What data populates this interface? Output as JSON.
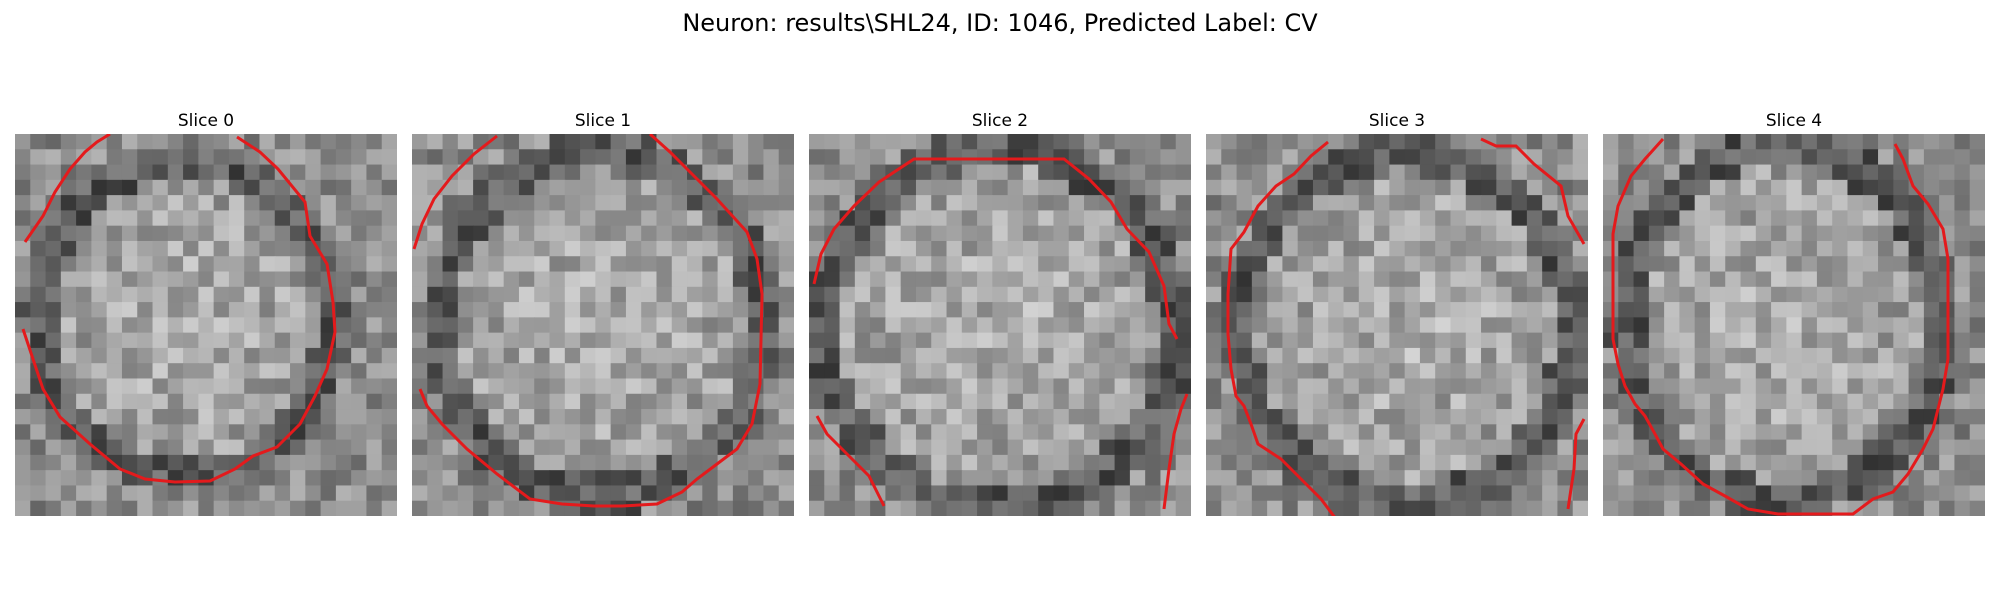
{
  "figure": {
    "title": "Neuron: results\\SHL24, ID: 1046, Predicted Label: CV"
  },
  "panels": [
    {
      "title": "Slice 0"
    },
    {
      "title": "Slice 1"
    },
    {
      "title": "Slice 2"
    },
    {
      "title": "Slice 3"
    },
    {
      "title": "Slice 4"
    }
  ],
  "colors": {
    "contour": "#e41a1c"
  }
}
